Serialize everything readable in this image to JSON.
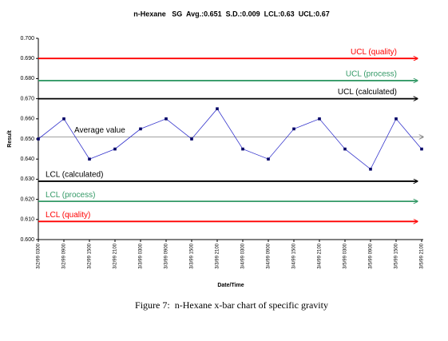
{
  "chart_data": {
    "type": "line",
    "title": "n-Hexane   SG  Avg.:0.651  S.D.:0.009  LCL:0.63  UCL:0.67",
    "xlabel": "Date/Time",
    "ylabel": "Result",
    "categories": [
      "3/2/99 0300",
      "3/2/99 0900",
      "3/2/99 1500",
      "3/2/99 2100",
      "3/3/99 0300",
      "3/3/99 0900",
      "3/3/99 1500",
      "3/3/99 2100",
      "3/4/99 0300",
      "3/4/99 0900",
      "3/4/99 1500",
      "3/4/99 2100",
      "3/5/99 0300",
      "3/5/99 0900",
      "3/5/99 1500",
      "3/5/99 2100"
    ],
    "values": [
      0.65,
      0.66,
      0.64,
      0.645,
      0.655,
      0.66,
      0.65,
      0.665,
      0.645,
      0.64,
      0.655,
      0.66,
      0.645,
      0.635,
      0.66,
      0.645
    ],
    "color": "#3333cc",
    "ylim": [
      0.6,
      0.7
    ],
    "yticks": [
      {
        "value": 0.6,
        "label": "0.600"
      },
      {
        "value": 0.61,
        "label": "0.610"
      },
      {
        "value": 0.62,
        "label": "0.620"
      },
      {
        "value": 0.63,
        "label": "0.630"
      },
      {
        "value": 0.64,
        "label": "0.640"
      },
      {
        "value": 0.65,
        "label": "0.650"
      },
      {
        "value": 0.66,
        "label": "0.660"
      },
      {
        "value": 0.67,
        "label": "0.670"
      },
      {
        "value": 0.68,
        "label": "0.680"
      },
      {
        "value": 0.69,
        "label": "0.690"
      },
      {
        "value": 0.7,
        "label": "0.700"
      }
    ],
    "reference_lines": [
      {
        "label": "UCL (quality)",
        "value": 0.69,
        "color": "#ff0000"
      },
      {
        "label": "UCL (process)",
        "value": 0.679,
        "color": "#339966"
      },
      {
        "label": "UCL (calculated)",
        "value": 0.67,
        "color": "#000000"
      },
      {
        "label": "Average value",
        "value": 0.651,
        "color": "#808080"
      },
      {
        "label": "LCL (calculated)",
        "value": 0.629,
        "color": "#000000"
      },
      {
        "label": "LCL (process)",
        "value": 0.619,
        "color": "#339966"
      },
      {
        "label": "LCL (quality)",
        "value": 0.609,
        "color": "#ff0000"
      }
    ],
    "caption": "Figure 7:  n-Hexane x-bar chart of specific gravity"
  }
}
